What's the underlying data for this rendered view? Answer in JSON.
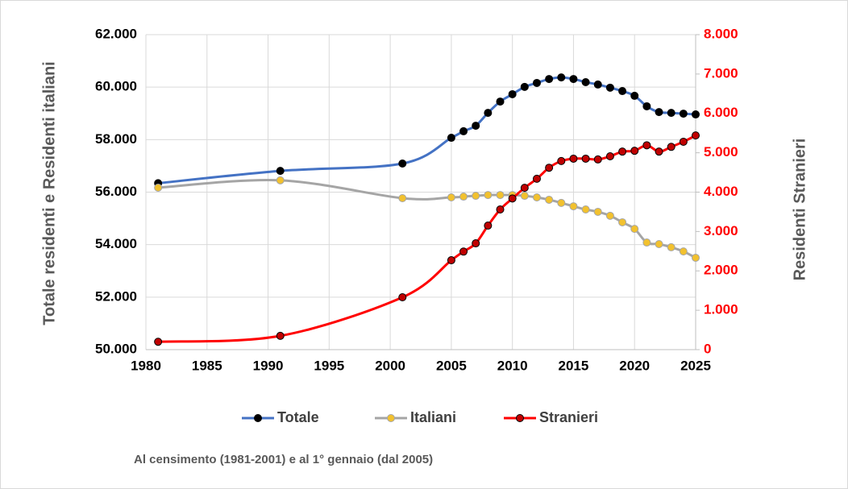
{
  "chart_data": {
    "type": "line",
    "y_axis_label": "Totale residenti e Residenti italiani",
    "y2_axis_label": "Residenti Stranieri",
    "note": "Al censimento (1981-2001) e al 1° gennaio (dal 2005)",
    "x": [
      1981,
      1991,
      2001,
      2005,
      2006,
      2007,
      2008,
      2009,
      2010,
      2011,
      2012,
      2013,
      2014,
      2015,
      2016,
      2017,
      2018,
      2019,
      2020,
      2021,
      2022,
      2023,
      2024,
      2025
    ],
    "xlim": [
      1980,
      2025
    ],
    "xticks": [
      1980,
      1985,
      1990,
      1995,
      2000,
      2005,
      2010,
      2015,
      2020,
      2025
    ],
    "ylim": [
      50000,
      62000
    ],
    "yticks": [
      {
        "value": 50000,
        "label": "50.000"
      },
      {
        "value": 52000,
        "label": "52.000"
      },
      {
        "value": 54000,
        "label": "54.000"
      },
      {
        "value": 56000,
        "label": "56.000"
      },
      {
        "value": 58000,
        "label": "58.000"
      },
      {
        "value": 60000,
        "label": "60.000"
      },
      {
        "value": 62000,
        "label": "62.000"
      }
    ],
    "y2lim": [
      0,
      8000
    ],
    "y2ticks": [
      0,
      {
        "value": 1000,
        "label": "1.000"
      },
      {
        "value": 2000,
        "label": "2.000"
      },
      {
        "value": 3000,
        "label": "3.000"
      },
      {
        "value": 4000,
        "label": "4.000"
      },
      {
        "value": 5000,
        "label": "5.000"
      },
      {
        "value": 6000,
        "label": "6.000"
      },
      {
        "value": 7000,
        "label": "7.000"
      },
      {
        "value": 8000,
        "label": "8.000"
      }
    ],
    "y2_color": "#ff0000",
    "grid": true,
    "legend": "bottom",
    "series": [
      {
        "name": "Totale",
        "color": "#4472c4",
        "marker_color": "#000000",
        "values": [
          56340,
          56810,
          57090,
          58070,
          58320,
          58530,
          59020,
          59450,
          59730,
          60010,
          60160,
          60310,
          60370,
          60310,
          60190,
          60100,
          59980,
          59850,
          59670,
          59270,
          59050,
          59020,
          58990,
          58960
        ]
      },
      {
        "name": "Italiani",
        "color": "#a5a5a5",
        "marker_color": "#f2c12e",
        "values": [
          56170,
          56450,
          55770,
          55800,
          55830,
          55860,
          55890,
          55890,
          55890,
          55860,
          55800,
          55710,
          55590,
          55460,
          55340,
          55250,
          55100,
          54850,
          54600,
          54080,
          54020,
          53900,
          53740,
          53500
        ]
      },
      {
        "name": "Stranieri",
        "color": "#ff0000",
        "marker_color": "#c00000",
        "axis": "y2",
        "values": [
          200,
          350,
          1330,
          2270,
          2490,
          2700,
          3150,
          3560,
          3840,
          4110,
          4340,
          4620,
          4790,
          4850,
          4850,
          4830,
          4910,
          5030,
          5050,
          5190,
          5030,
          5150,
          5280,
          5440
        ]
      }
    ]
  }
}
